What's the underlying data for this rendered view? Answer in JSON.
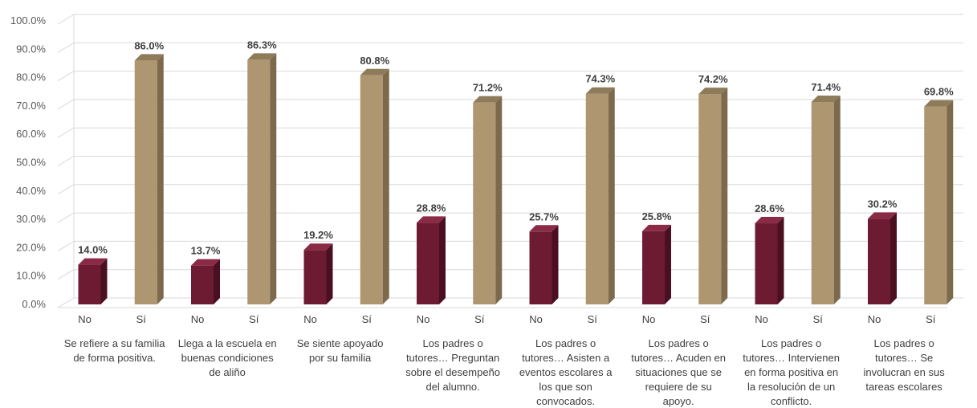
{
  "chart_data": {
    "type": "bar",
    "style": "3d-clustered",
    "ylim": [
      0,
      100
    ],
    "y_ticks": [
      "0.0%",
      "10.0%",
      "20.0%",
      "30.0%",
      "40.0%",
      "50.0%",
      "60.0%",
      "70.0%",
      "80.0%",
      "90.0%",
      "100.0%"
    ],
    "grid": true,
    "legend": "none",
    "series": [
      {
        "key": "No",
        "color": "#6d1b33",
        "side": "#4a0f21",
        "top": "#8a2a45"
      },
      {
        "key": "Sí",
        "color": "#ae9670",
        "side": "#7d6a4d",
        "top": "#8e7b5a"
      }
    ],
    "groups": [
      {
        "label": "Se refiere a su familia\nde forma positiva.",
        "bars": [
          {
            "x": "No",
            "value": 14.0,
            "label": "14.0%"
          },
          {
            "x": "Sí",
            "value": 86.0,
            "label": "86.0%"
          }
        ]
      },
      {
        "label": "Llega a la escuela en\nbuenas condiciones\nde aliño",
        "bars": [
          {
            "x": "No",
            "value": 13.7,
            "label": "13.7%"
          },
          {
            "x": "Sí",
            "value": 86.3,
            "label": "86.3%"
          }
        ]
      },
      {
        "label": "Se siente apoyado\npor su familia",
        "bars": [
          {
            "x": "No",
            "value": 19.2,
            "label": "19.2%"
          },
          {
            "x": "Sí",
            "value": 80.8,
            "label": "80.8%"
          }
        ]
      },
      {
        "label": "Los padres o\ntutores… Preguntan\nsobre el desempeño\ndel alumno.",
        "bars": [
          {
            "x": "No",
            "value": 28.8,
            "label": "28.8%"
          },
          {
            "x": "Sí",
            "value": 71.2,
            "label": "71.2%"
          }
        ]
      },
      {
        "label": "Los padres o\ntutores… Asisten a\neventos escolares a\nlos que son\nconvocados.",
        "bars": [
          {
            "x": "No",
            "value": 25.7,
            "label": "25.7%"
          },
          {
            "x": "Sí",
            "value": 74.3,
            "label": "74.3%"
          }
        ]
      },
      {
        "label": "Los padres o\ntutores… Acuden en\nsituaciones que se\nrequiere de su\napoyo.",
        "bars": [
          {
            "x": "No",
            "value": 25.8,
            "label": "25.8%"
          },
          {
            "x": "Sí",
            "value": 74.2,
            "label": "74.2%"
          }
        ]
      },
      {
        "label": "Los padres o\ntutores… Intervienen\nen forma positiva en\nla resolución de un\nconflicto.",
        "bars": [
          {
            "x": "No",
            "value": 28.6,
            "label": "28.6%"
          },
          {
            "x": "Sí",
            "value": 71.4,
            "label": "71.4%"
          }
        ]
      },
      {
        "label": "Los padres o\ntutores… Se\ninvolucran en sus\ntareas escolares",
        "bars": [
          {
            "x": "No",
            "value": 30.2,
            "label": "30.2%"
          },
          {
            "x": "Sí",
            "value": 69.8,
            "label": "69.8%"
          }
        ]
      }
    ]
  }
}
